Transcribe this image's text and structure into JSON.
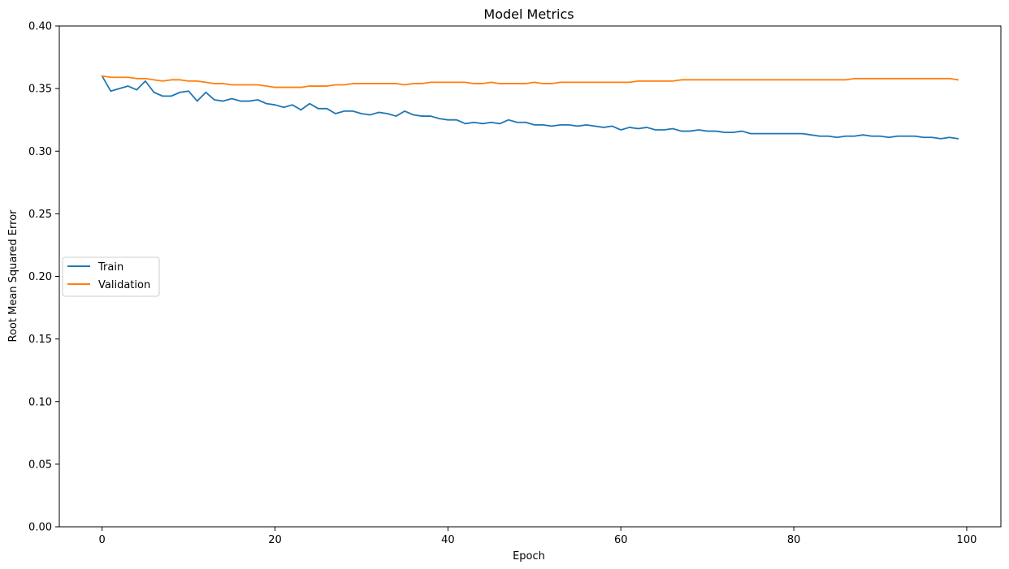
{
  "chart_data": {
    "type": "line",
    "title": "Model Metrics",
    "xlabel": "Epoch",
    "ylabel": "Root Mean Squared Error",
    "xlim": [
      -4.95,
      103.95
    ],
    "ylim": [
      0.0,
      0.4
    ],
    "xticks": [
      0,
      20,
      40,
      60,
      80,
      100
    ],
    "xtick_labels": [
      "0",
      "20",
      "40",
      "60",
      "80",
      "100"
    ],
    "yticks": [
      0.0,
      0.05,
      0.1,
      0.15,
      0.2,
      0.25,
      0.3,
      0.35,
      0.4
    ],
    "ytick_labels": [
      "0.00",
      "0.05",
      "0.10",
      "0.15",
      "0.20",
      "0.25",
      "0.30",
      "0.35",
      "0.40"
    ],
    "grid": false,
    "legend": "center-left",
    "series": [
      {
        "name": "Train",
        "color": "#1f77b4",
        "values": [
          0.36,
          0.348,
          0.35,
          0.352,
          0.349,
          0.356,
          0.347,
          0.344,
          0.344,
          0.347,
          0.348,
          0.34,
          0.347,
          0.341,
          0.34,
          0.342,
          0.34,
          0.34,
          0.341,
          0.338,
          0.337,
          0.335,
          0.337,
          0.333,
          0.338,
          0.334,
          0.334,
          0.33,
          0.332,
          0.332,
          0.33,
          0.329,
          0.331,
          0.33,
          0.328,
          0.332,
          0.329,
          0.328,
          0.328,
          0.326,
          0.325,
          0.325,
          0.322,
          0.323,
          0.322,
          0.323,
          0.322,
          0.325,
          0.323,
          0.323,
          0.321,
          0.321,
          0.32,
          0.321,
          0.321,
          0.32,
          0.321,
          0.32,
          0.319,
          0.32,
          0.317,
          0.319,
          0.318,
          0.319,
          0.317,
          0.317,
          0.318,
          0.316,
          0.316,
          0.317,
          0.316,
          0.316,
          0.315,
          0.315,
          0.316,
          0.314,
          0.314,
          0.314,
          0.314,
          0.314,
          0.314,
          0.314,
          0.313,
          0.312,
          0.312,
          0.311,
          0.312,
          0.312,
          0.313,
          0.312,
          0.312,
          0.311,
          0.312,
          0.312,
          0.312,
          0.311,
          0.311,
          0.31,
          0.311,
          0.31
        ]
      },
      {
        "name": "Validation",
        "color": "#ff7f0e",
        "values": [
          0.36,
          0.359,
          0.359,
          0.359,
          0.358,
          0.358,
          0.357,
          0.356,
          0.357,
          0.357,
          0.356,
          0.356,
          0.355,
          0.354,
          0.354,
          0.353,
          0.353,
          0.353,
          0.353,
          0.352,
          0.351,
          0.351,
          0.351,
          0.351,
          0.352,
          0.352,
          0.352,
          0.353,
          0.353,
          0.354,
          0.354,
          0.354,
          0.354,
          0.354,
          0.354,
          0.353,
          0.354,
          0.354,
          0.355,
          0.355,
          0.355,
          0.355,
          0.355,
          0.354,
          0.354,
          0.355,
          0.354,
          0.354,
          0.354,
          0.354,
          0.355,
          0.354,
          0.354,
          0.355,
          0.355,
          0.355,
          0.355,
          0.355,
          0.355,
          0.355,
          0.355,
          0.355,
          0.356,
          0.356,
          0.356,
          0.356,
          0.356,
          0.357,
          0.357,
          0.357,
          0.357,
          0.357,
          0.357,
          0.357,
          0.357,
          0.357,
          0.357,
          0.357,
          0.357,
          0.357,
          0.357,
          0.357,
          0.357,
          0.357,
          0.357,
          0.357,
          0.357,
          0.358,
          0.358,
          0.358,
          0.358,
          0.358,
          0.358,
          0.358,
          0.358,
          0.358,
          0.358,
          0.358,
          0.358,
          0.357
        ]
      }
    ]
  }
}
